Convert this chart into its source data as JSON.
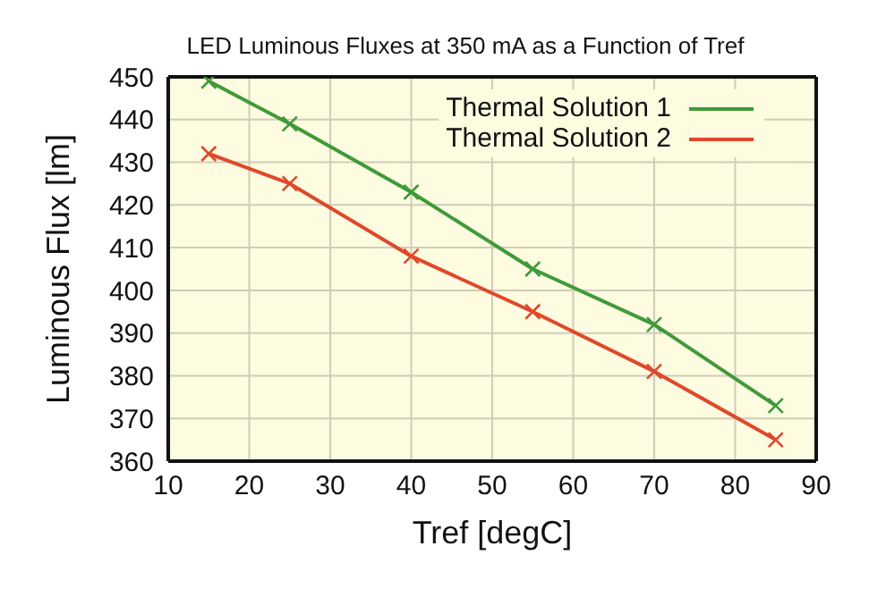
{
  "chart_data": {
    "type": "line",
    "title": "LED Luminous Fluxes at 350 mA as a Function of Tref",
    "xlabel": "Tref [degC]",
    "ylabel": "Luminous Flux [lm]",
    "x": [
      15,
      25,
      40,
      55,
      70,
      85
    ],
    "series": [
      {
        "name": "Thermal Solution 1",
        "color": "#3f9a3a",
        "values": [
          449,
          439,
          423,
          405,
          392,
          373
        ]
      },
      {
        "name": "Thermal Solution 2",
        "color": "#e0482a",
        "values": [
          432,
          425,
          408,
          395,
          381,
          365
        ]
      }
    ],
    "xlim": [
      10,
      90
    ],
    "xticks": [
      10,
      20,
      30,
      40,
      50,
      60,
      70,
      80,
      90
    ],
    "ylim": [
      360,
      450
    ],
    "yticks": [
      360,
      370,
      380,
      390,
      400,
      410,
      420,
      430,
      440,
      450
    ],
    "grid": true,
    "legend": "top right",
    "marker": "cross",
    "line_style": "solid"
  }
}
